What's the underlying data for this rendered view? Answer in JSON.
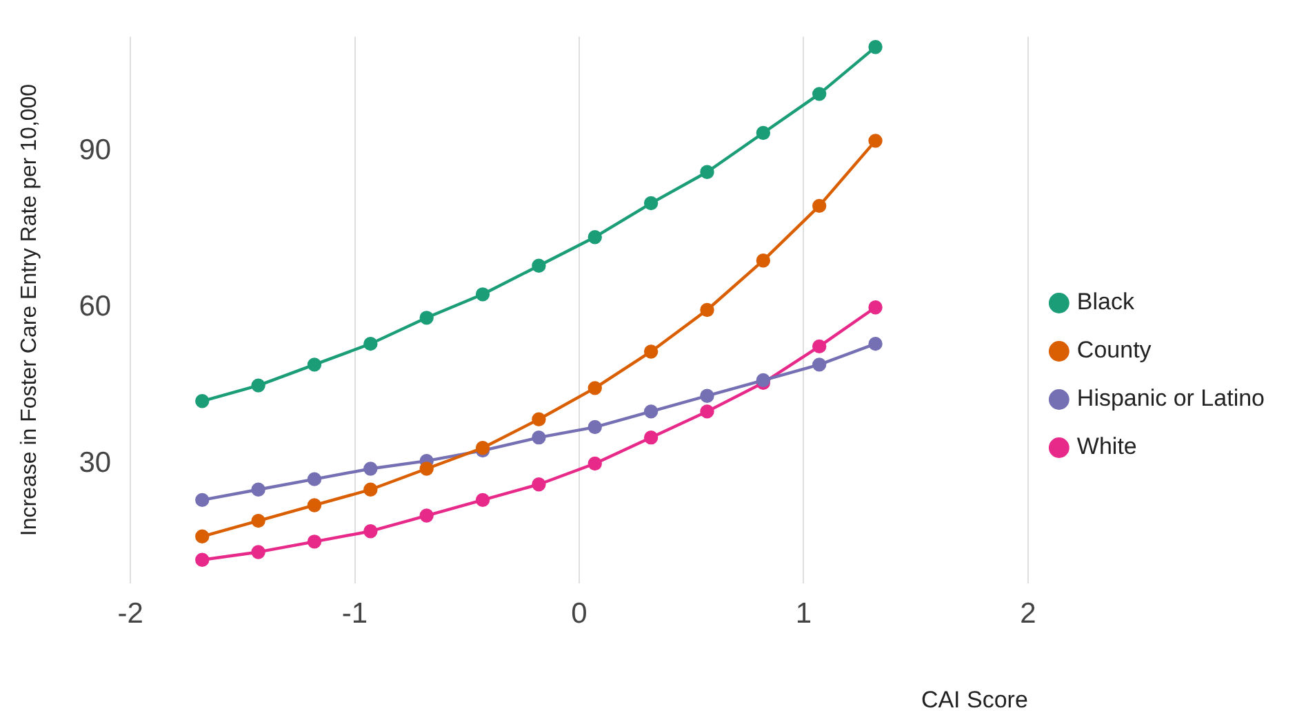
{
  "chart_data": {
    "type": "line",
    "xlabel": "CAI Score",
    "ylabel": "Increase in Foster Care Entry Rate per 10,000",
    "x": [
      -1.68,
      -1.43,
      -1.18,
      -0.93,
      -0.68,
      -0.43,
      -0.18,
      0.07,
      0.32,
      0.57,
      0.82,
      1.07,
      1.32
    ],
    "series": [
      {
        "name": "Black",
        "color": "#1b9e77",
        "values": [
          42,
          45,
          49,
          53,
          58,
          62.5,
          68,
          73.5,
          80,
          86,
          93.5,
          101,
          110
        ]
      },
      {
        "name": "County",
        "color": "#d95f02",
        "values": [
          16,
          19,
          22,
          25,
          29,
          33,
          38.5,
          44.5,
          51.5,
          59.5,
          69,
          79.5,
          92
        ]
      },
      {
        "name": "Hispanic or Latino",
        "color": "#7570b3",
        "values": [
          23,
          25,
          27,
          29,
          30.5,
          32.5,
          35,
          37,
          40,
          43,
          46,
          49,
          53
        ]
      },
      {
        "name": "White",
        "color": "#e7298a",
        "values": [
          11.5,
          13,
          15,
          17,
          20,
          23,
          26,
          30,
          35,
          40,
          45.5,
          52.5,
          60
        ]
      }
    ],
    "xlim": [
      -2,
      2
    ],
    "xticks": [
      -2,
      -1,
      0,
      1,
      2
    ],
    "ylim": [
      7,
      112
    ],
    "yticks": [
      30,
      60,
      90
    ],
    "grid": "x",
    "legend": "right",
    "marker": "circle",
    "line_style": "solid"
  }
}
